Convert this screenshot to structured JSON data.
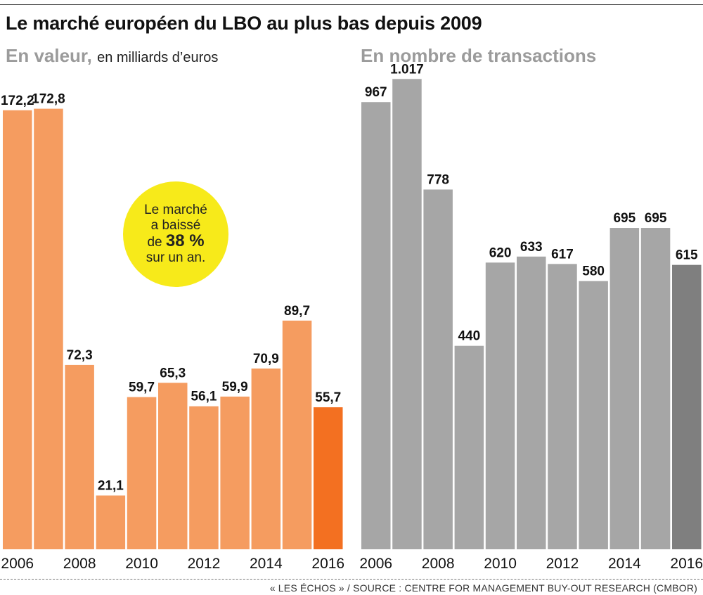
{
  "header": {
    "title": "Le marché européen du LBO au plus bas depuis 2009",
    "left_subtitle": "En valeur,",
    "left_subtitle_unit": "en milliards d’euros",
    "right_subtitle": "En nombre de transactions"
  },
  "callout": {
    "line1": "Le marché",
    "line2": "a baissé",
    "line3_prefix": "de",
    "line3_value": "38 %",
    "line4": "sur un an."
  },
  "source": "« LES ÉCHOS » / SOURCE : CENTRE FOR MANAGEMENT BUY-OUT RESEARCH (CMBOR)",
  "colors": {
    "left_bar": "#f59c60",
    "left_highlight": "#f37021",
    "right_bar": "#a6a6a6",
    "right_highlight": "#7f7f7f",
    "callout_bg": "#f7ea1a",
    "subtitle": "#9b9b9b"
  },
  "chart_data": [
    {
      "type": "bar",
      "title": "En valeur,",
      "ylabel": "en milliards d’euros",
      "categories": [
        "2006",
        "2007",
        "2008",
        "2009",
        "2010",
        "2011",
        "2012",
        "2013",
        "2014",
        "2015",
        "2016"
      ],
      "values": [
        172.2,
        172.8,
        72.3,
        21.1,
        59.7,
        65.3,
        56.1,
        59.9,
        70.9,
        89.7,
        55.7
      ],
      "labels": [
        "172,2",
        "172,8",
        "72,3",
        "21,1",
        "59,7",
        "65,3",
        "56,1",
        "59,9",
        "70,9",
        "89,7",
        "55,7"
      ],
      "tick_labels": [
        "2006",
        "",
        "2008",
        "",
        "2010",
        "",
        "2012",
        "",
        "2014",
        "",
        "2016"
      ],
      "highlight_index": 10,
      "ylim": [
        0,
        180
      ],
      "grid": false
    },
    {
      "type": "bar",
      "title": "En nombre de transactions",
      "categories": [
        "2006",
        "2007",
        "2008",
        "2009",
        "2010",
        "2011",
        "2012",
        "2013",
        "2014",
        "2015",
        "2016"
      ],
      "values": [
        967,
        1017,
        778,
        440,
        620,
        633,
        617,
        580,
        695,
        695,
        615
      ],
      "labels": [
        "967",
        "1.017",
        "778",
        "440",
        "620",
        "633",
        "617",
        "580",
        "695",
        "695",
        "615"
      ],
      "tick_labels": [
        "2006",
        "",
        "2008",
        "",
        "2010",
        "",
        "2012",
        "",
        "2014",
        "",
        "2016"
      ],
      "highlight_index": 10,
      "ylim": [
        0,
        1060
      ],
      "grid": false
    }
  ]
}
